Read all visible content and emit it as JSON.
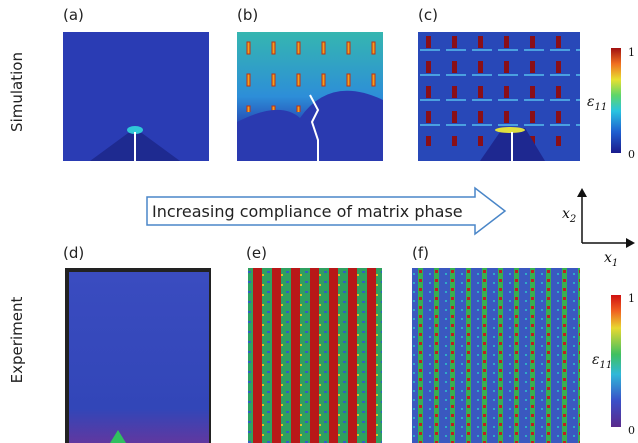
{
  "rows": [
    {
      "label": "Simulation",
      "panels": [
        "(a)",
        "(b)",
        "(c)"
      ],
      "colorbar": {
        "symbol": "ε",
        "subscript": "11",
        "max": 1,
        "min": 0
      }
    },
    {
      "label": "Experiment",
      "panels": [
        "(d)",
        "(e)",
        "(f)"
      ],
      "colorbar": {
        "symbol": "ε",
        "subscript": "11",
        "max": 1,
        "min": 0
      }
    }
  ],
  "arrow": {
    "text": "Increasing compliance of matrix phase"
  },
  "axes": {
    "vertical": {
      "symbol": "x",
      "subscript": "2"
    },
    "horizontal": {
      "symbol": "x",
      "subscript": "1"
    }
  }
}
